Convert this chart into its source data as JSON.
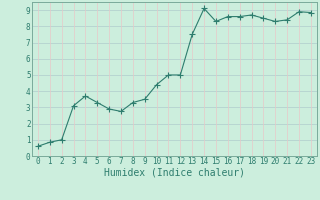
{
  "x": [
    0,
    1,
    2,
    3,
    4,
    5,
    6,
    7,
    8,
    9,
    10,
    11,
    12,
    13,
    14,
    15,
    16,
    17,
    18,
    19,
    20,
    21,
    22,
    23
  ],
  "y": [
    0.6,
    0.85,
    1.0,
    3.1,
    3.7,
    3.3,
    2.9,
    2.75,
    3.3,
    3.5,
    4.4,
    5.0,
    5.0,
    7.5,
    9.1,
    8.3,
    8.6,
    8.6,
    8.7,
    8.5,
    8.3,
    8.4,
    8.9,
    8.85
  ],
  "line_color": "#2e7d6e",
  "marker": "+",
  "marker_size": 4,
  "bg_color": "#cceedd",
  "grid_color": "#b0cccc",
  "grid_color2": "#e8c8c8",
  "xlabel": "Humidex (Indice chaleur)",
  "xlim": [
    -0.5,
    23.5
  ],
  "ylim": [
    0,
    9.5
  ],
  "yticks": [
    0,
    1,
    2,
    3,
    4,
    5,
    6,
    7,
    8,
    9
  ],
  "xticks": [
    0,
    1,
    2,
    3,
    4,
    5,
    6,
    7,
    8,
    9,
    10,
    11,
    12,
    13,
    14,
    15,
    16,
    17,
    18,
    19,
    20,
    21,
    22,
    23
  ],
  "font_color": "#2e7d6e",
  "tick_fontsize": 5.5,
  "label_fontsize": 7
}
